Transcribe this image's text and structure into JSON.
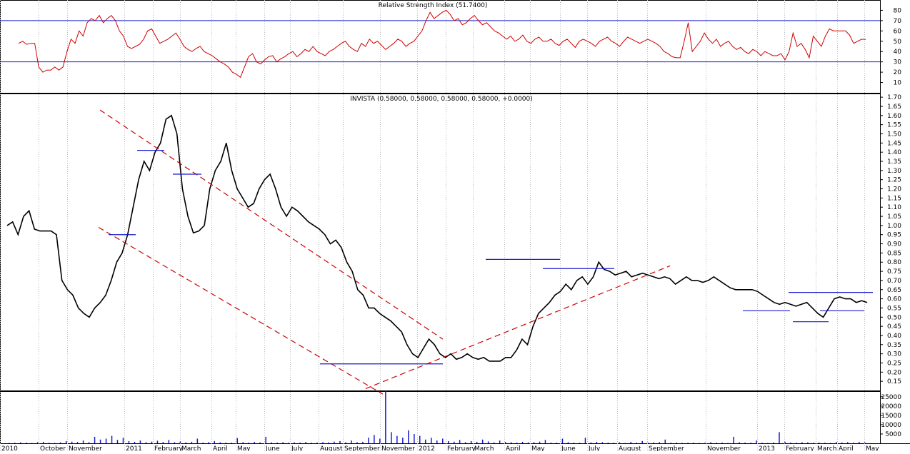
{
  "chart_data": [
    {
      "panel": "rsi",
      "type": "line",
      "title": "Relative Strength Index (51.7400)",
      "ylim": [
        0,
        90
      ],
      "yticks": [
        10,
        20,
        30,
        40,
        50,
        60,
        70,
        80
      ],
      "reference_lines": [
        30,
        70
      ],
      "series": [
        {
          "color": "#d00000",
          "values": [
            48,
            50,
            47,
            48,
            48,
            25,
            20,
            22,
            22,
            25,
            22,
            25,
            40,
            52,
            48,
            60,
            55,
            68,
            72,
            70,
            75,
            68,
            72,
            75,
            70,
            60,
            55,
            45,
            43,
            45,
            47,
            52,
            60,
            62,
            55,
            48,
            50,
            52,
            55,
            58,
            52,
            45,
            42,
            40,
            43,
            45,
            40,
            38,
            36,
            33,
            30,
            28,
            25,
            20,
            18,
            15,
            25,
            35,
            38,
            30,
            28,
            32,
            35,
            36,
            30,
            33,
            35,
            38,
            40,
            35,
            38,
            42,
            40,
            45,
            40,
            38,
            36,
            40,
            42,
            45,
            48,
            50,
            45,
            42,
            40,
            48,
            45,
            52,
            48,
            50,
            46,
            42,
            45,
            48,
            52,
            50,
            45,
            48,
            50,
            55,
            60,
            70,
            78,
            72,
            75,
            78,
            80,
            76,
            70,
            72,
            66,
            68,
            72,
            75,
            70,
            66,
            68,
            64,
            60,
            58,
            55,
            52,
            55,
            50,
            52,
            56,
            50,
            48,
            52,
            54,
            50,
            50,
            52,
            48,
            46,
            50,
            52,
            48,
            44,
            50,
            52,
            50,
            48,
            45,
            50,
            52,
            54,
            50,
            48,
            45,
            50,
            54,
            52,
            50,
            48,
            50,
            52,
            50,
            48,
            45,
            40,
            38,
            35,
            34,
            34,
            50,
            68,
            40,
            45,
            50,
            58,
            52,
            48,
            52,
            45,
            48,
            50,
            45,
            42,
            44,
            40,
            38,
            42,
            40,
            36,
            40,
            38,
            36,
            36,
            38,
            32,
            40,
            58,
            45,
            48,
            42,
            34,
            55,
            50,
            45,
            55,
            62,
            60,
            60,
            60,
            60,
            56,
            48,
            50,
            52,
            51.74
          ]
        }
      ]
    },
    {
      "panel": "price",
      "type": "line",
      "title": "INVISTA (0.58000, 0.58000, 0.58000, 0.58000, +0.0000)",
      "ylim": [
        0.1,
        1.72
      ],
      "yticks": [
        0.15,
        0.2,
        0.25,
        0.3,
        0.35,
        0.4,
        0.45,
        0.5,
        0.55,
        0.6,
        0.65,
        0.7,
        0.75,
        0.8,
        0.85,
        0.9,
        0.95,
        1.0,
        1.05,
        1.1,
        1.15,
        1.2,
        1.25,
        1.3,
        1.35,
        1.4,
        1.45,
        1.5,
        1.55,
        1.6,
        1.65,
        1.7
      ],
      "series": [
        {
          "color": "#000000",
          "values": [
            1.0,
            1.02,
            0.95,
            1.05,
            1.08,
            0.98,
            0.97,
            0.97,
            0.97,
            0.95,
            0.7,
            0.65,
            0.62,
            0.55,
            0.52,
            0.5,
            0.55,
            0.58,
            0.62,
            0.7,
            0.8,
            0.85,
            0.95,
            1.1,
            1.25,
            1.35,
            1.3,
            1.4,
            1.45,
            1.58,
            1.6,
            1.5,
            1.2,
            1.05,
            0.96,
            0.97,
            1.0,
            1.2,
            1.3,
            1.35,
            1.45,
            1.3,
            1.2,
            1.15,
            1.1,
            1.12,
            1.2,
            1.25,
            1.28,
            1.2,
            1.1,
            1.05,
            1.1,
            1.08,
            1.05,
            1.02,
            1.0,
            0.98,
            0.95,
            0.9,
            0.92,
            0.88,
            0.8,
            0.75,
            0.65,
            0.62,
            0.55,
            0.55,
            0.52,
            0.5,
            0.48,
            0.45,
            0.42,
            0.35,
            0.3,
            0.28,
            0.33,
            0.38,
            0.35,
            0.3,
            0.28,
            0.3,
            0.27,
            0.28,
            0.3,
            0.28,
            0.27,
            0.28,
            0.26,
            0.26,
            0.26,
            0.28,
            0.28,
            0.32,
            0.38,
            0.35,
            0.45,
            0.52,
            0.55,
            0.58,
            0.62,
            0.64,
            0.68,
            0.65,
            0.7,
            0.72,
            0.68,
            0.72,
            0.8,
            0.76,
            0.75,
            0.73,
            0.74,
            0.75,
            0.72,
            0.73,
            0.74,
            0.73,
            0.72,
            0.71,
            0.72,
            0.71,
            0.68,
            0.7,
            0.72,
            0.7,
            0.7,
            0.69,
            0.7,
            0.72,
            0.7,
            0.68,
            0.66,
            0.65,
            0.65,
            0.65,
            0.65,
            0.64,
            0.62,
            0.6,
            0.58,
            0.57,
            0.58,
            0.57,
            0.56,
            0.57,
            0.58,
            0.55,
            0.52,
            0.5,
            0.55,
            0.6,
            0.61,
            0.6,
            0.6,
            0.58,
            0.59,
            0.58
          ]
        }
      ]
    },
    {
      "panel": "volume",
      "type": "bar",
      "ylim": [
        0,
        28000
      ],
      "yticks": [
        5000,
        10000,
        15000,
        20000,
        25000
      ],
      "series": [
        {
          "color": "#1a1ad0",
          "values": [
            200,
            300,
            500,
            400,
            200,
            600,
            800,
            300,
            200,
            500,
            1200,
            900,
            700,
            1500,
            600,
            3500,
            2000,
            2500,
            4000,
            1800,
            3000,
            1200,
            800,
            1500,
            600,
            900,
            1400,
            700,
            1800,
            600,
            1000,
            500,
            800,
            2500,
            400,
            600,
            1200,
            500,
            400,
            300,
            2800,
            600,
            400,
            800,
            500,
            3500,
            500,
            400,
            600,
            300,
            500,
            400,
            700,
            300,
            400,
            600,
            500,
            900,
            1200,
            500,
            1500,
            600,
            800,
            3000,
            4500,
            2500,
            28000,
            6000,
            4000,
            3000,
            7000,
            5000,
            4000,
            2000,
            3000,
            1500,
            2500,
            1200,
            900,
            1800,
            600,
            1200,
            800,
            2000,
            1000,
            500,
            1500,
            700,
            600,
            400,
            800,
            500,
            600,
            900,
            1800,
            300,
            400,
            2500,
            600,
            400,
            300,
            3000,
            500,
            800,
            600,
            400,
            300,
            500,
            200,
            800,
            400,
            1200,
            300,
            500,
            600,
            2000,
            300,
            400,
            200,
            300,
            400,
            200,
            300,
            600,
            300,
            400,
            200,
            3500,
            600,
            400,
            300,
            1500,
            300,
            200,
            500,
            6000,
            900,
            400,
            300,
            600,
            500,
            300,
            400,
            300,
            200,
            700,
            400,
            600,
            300,
            800,
            500
          ]
        }
      ]
    }
  ],
  "x_axis": {
    "labels": [
      "2010",
      "October",
      "November",
      "2011",
      "February",
      "March",
      "April",
      "May",
      "June",
      "July",
      "August",
      "September",
      "November",
      "2012",
      "February",
      "March",
      "April",
      "May",
      "June",
      "July",
      "August",
      "September",
      "November",
      "2013",
      "February",
      "March",
      "April",
      "May"
    ]
  },
  "annotations": {
    "channel_line_color": "#d00000",
    "level_line_color": "#1a1ad0"
  }
}
